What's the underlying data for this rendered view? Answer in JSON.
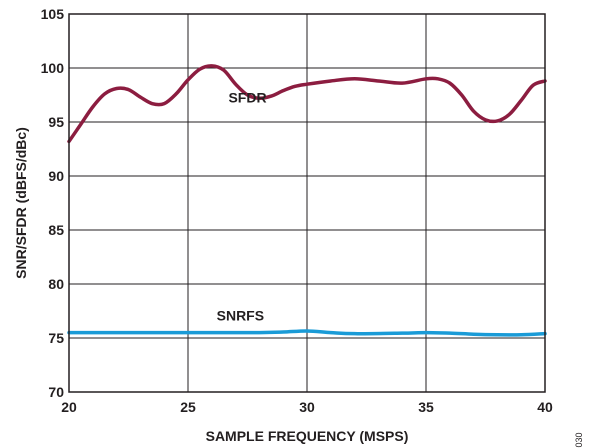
{
  "chart_data": {
    "type": "line",
    "title": "",
    "xlabel": "SAMPLE FREQUENCY (MSPS)",
    "ylabel": "SNR/SFDR (dBFS/dBc)",
    "xlim": [
      20,
      40
    ],
    "ylim": [
      70,
      105
    ],
    "xticks": [
      20,
      25,
      30,
      35,
      40
    ],
    "yticks": [
      70,
      75,
      80,
      85,
      90,
      95,
      100,
      105
    ],
    "grid": true,
    "legend": "none",
    "series": [
      {
        "name": "SFDR",
        "color": "#8c1d40",
        "x": [
          20,
          20.5,
          21,
          21.5,
          22,
          22.5,
          23,
          23.5,
          24,
          24.5,
          25,
          25.5,
          26,
          26.5,
          27,
          27.5,
          28,
          28.5,
          29,
          29.5,
          30,
          31,
          32,
          33,
          34,
          35,
          35.5,
          36,
          36.5,
          37,
          37.5,
          38,
          38.5,
          39,
          39.5,
          40
        ],
        "values": [
          93.2,
          94.8,
          96.4,
          97.6,
          98.1,
          98.0,
          97.3,
          96.7,
          96.7,
          97.6,
          98.9,
          99.9,
          100.2,
          99.8,
          98.5,
          97.5,
          97.2,
          97.4,
          97.9,
          98.3,
          98.5,
          98.8,
          99.0,
          98.8,
          98.6,
          99.0,
          99.0,
          98.6,
          97.5,
          96.0,
          95.2,
          95.1,
          95.7,
          97.0,
          98.4,
          98.8
        ]
      },
      {
        "name": "SNRFS",
        "color": "#1a9bd7",
        "x": [
          20,
          22,
          24,
          26,
          28,
          29,
          30,
          31,
          32,
          34,
          35,
          36,
          37,
          38,
          39,
          40
        ],
        "values": [
          75.5,
          75.5,
          75.5,
          75.5,
          75.5,
          75.55,
          75.65,
          75.5,
          75.4,
          75.45,
          75.5,
          75.45,
          75.35,
          75.3,
          75.3,
          75.4
        ]
      }
    ],
    "annotations": [
      {
        "text": "SFDR",
        "x": 27.5,
        "y": 96.8
      },
      {
        "text": "SNRFS",
        "x": 27.2,
        "y": 76.6
      }
    ]
  },
  "side_note": "030"
}
